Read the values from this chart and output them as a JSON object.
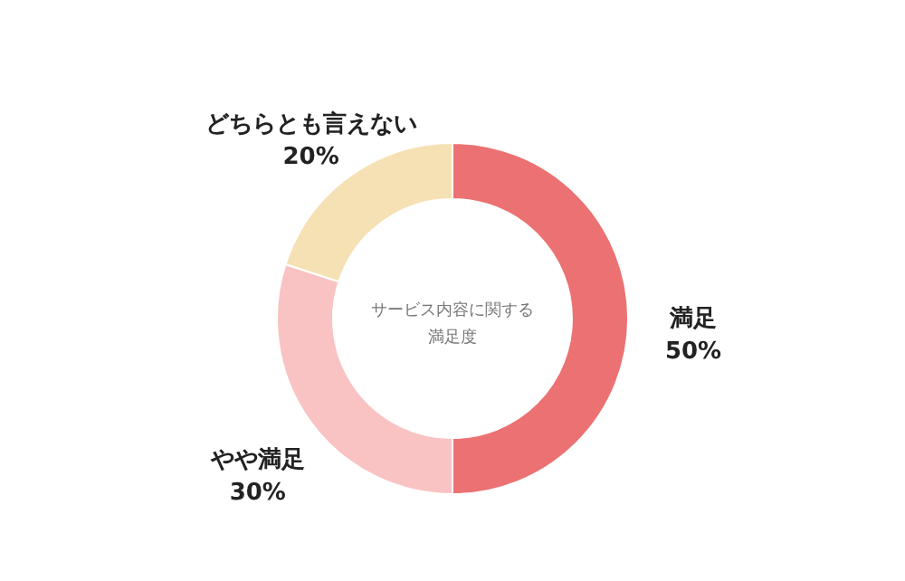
{
  "chart_data": {
    "type": "donut",
    "title": "サービス内容に関する満足度",
    "categories": [
      "満足",
      "やや満足",
      "どちらとも言えない"
    ],
    "values": [
      50,
      30,
      20
    ],
    "colors": [
      "#ec7172",
      "#f9c3c4",
      "#f5e1b3"
    ],
    "value_labels": [
      "50%",
      "30%",
      "20%"
    ]
  }
}
